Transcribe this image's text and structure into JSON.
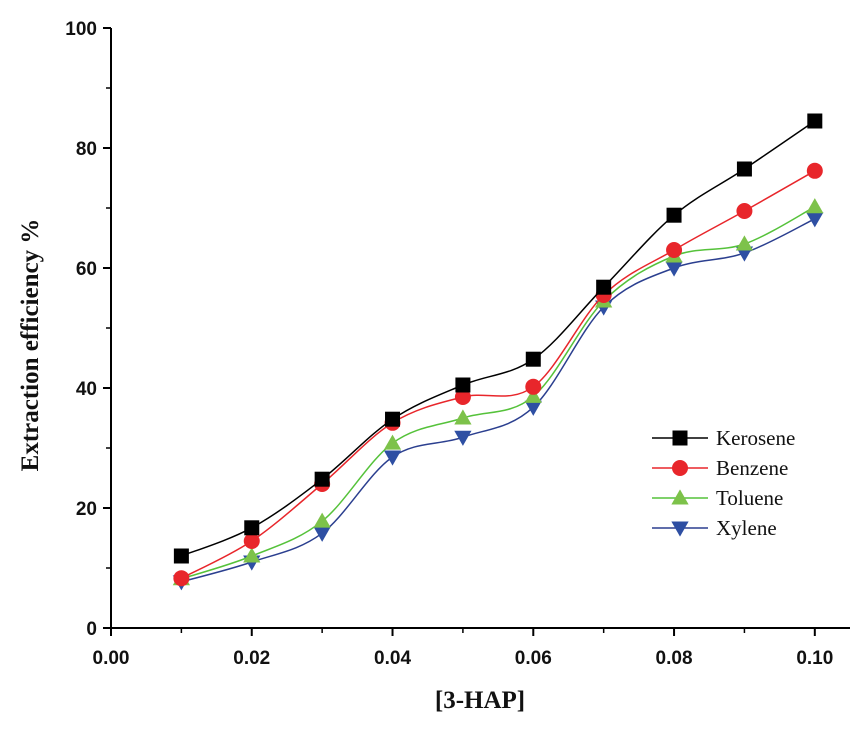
{
  "chart_data": {
    "type": "line",
    "title": "",
    "xlabel": "[3-HAP]",
    "ylabel": "Extraction efficiency %",
    "xlim": [
      0.0,
      0.105
    ],
    "ylim": [
      0,
      100
    ],
    "xticks": [
      "0.00",
      "0.02",
      "0.04",
      "0.06",
      "0.08",
      "0.10"
    ],
    "xtick_values": [
      0.0,
      0.02,
      0.04,
      0.06,
      0.08,
      0.1
    ],
    "yticks": [
      "0",
      "20",
      "40",
      "60",
      "80",
      "100"
    ],
    "ytick_values": [
      0,
      20,
      40,
      60,
      80,
      100
    ],
    "grid": false,
    "legend_position": "right",
    "x": [
      0.01,
      0.02,
      0.03,
      0.04,
      0.05,
      0.06,
      0.07,
      0.08,
      0.09,
      0.1
    ],
    "series": [
      {
        "name": "Kerosene",
        "marker": "square",
        "line_color": "#000000",
        "marker_color": "#000000",
        "values": [
          12,
          16.7,
          24.8,
          34.8,
          40.5,
          44.8,
          56.8,
          68.8,
          76.5,
          84.5
        ]
      },
      {
        "name": "Benzene",
        "marker": "circle",
        "line_color": "#e8262b",
        "marker_color": "#e8262b",
        "values": [
          8.3,
          14.5,
          24,
          34.2,
          38.5,
          40.2,
          55.5,
          63,
          69.5,
          76.2
        ]
      },
      {
        "name": "Toluene",
        "marker": "triangle-up",
        "line_color": "#55c23a",
        "marker_color": "#7dc24a",
        "values": [
          8.2,
          12,
          17.8,
          30.8,
          35,
          38.6,
          54.5,
          62,
          64,
          70.2
        ]
      },
      {
        "name": "Xylene",
        "marker": "triangle-down",
        "line_color": "#2b3f8f",
        "marker_color": "#2e4fa3",
        "values": [
          7.7,
          11,
          15.8,
          28.5,
          31.8,
          36.8,
          53.5,
          60,
          62.5,
          68.2
        ]
      }
    ]
  }
}
